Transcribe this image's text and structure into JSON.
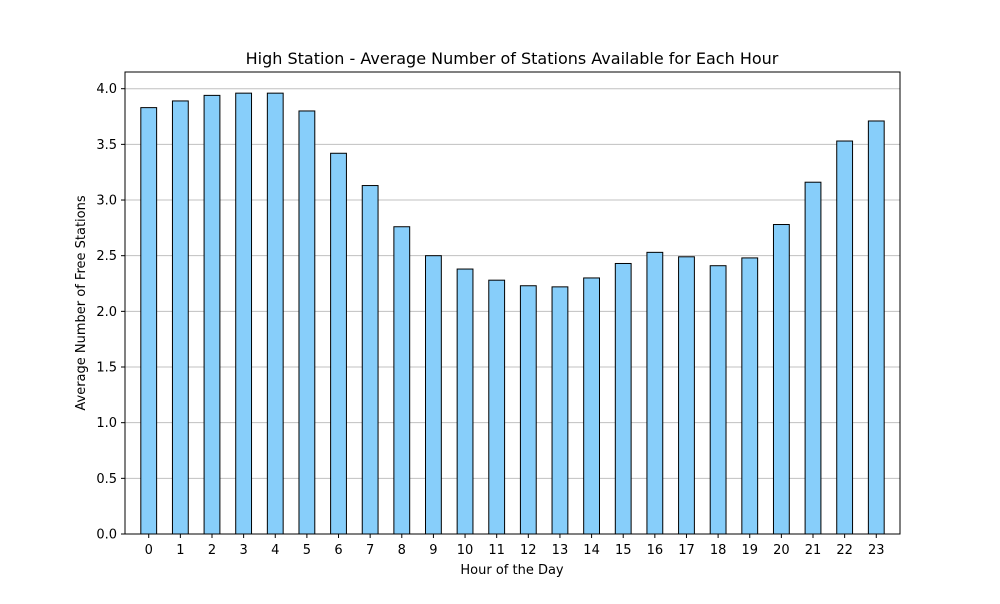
{
  "chart_data": {
    "type": "bar",
    "title": "High Station - Average Number of Stations Available for Each Hour",
    "xlabel": "Hour of the Day",
    "ylabel": "Average Number of Free Stations",
    "categories": [
      "0",
      "1",
      "2",
      "3",
      "4",
      "5",
      "6",
      "7",
      "8",
      "9",
      "10",
      "11",
      "12",
      "13",
      "14",
      "15",
      "16",
      "17",
      "18",
      "19",
      "20",
      "21",
      "22",
      "23"
    ],
    "values": [
      3.83,
      3.89,
      3.94,
      3.96,
      3.96,
      3.8,
      3.42,
      3.13,
      2.76,
      2.5,
      2.38,
      2.28,
      2.23,
      2.22,
      2.3,
      2.43,
      2.53,
      2.49,
      2.41,
      2.48,
      2.78,
      3.16,
      3.53,
      3.71
    ],
    "ylim": [
      0,
      4.15
    ],
    "yticks": [
      "0.0",
      "0.5",
      "1.0",
      "1.5",
      "2.0",
      "2.5",
      "3.0",
      "3.5",
      "4.0"
    ],
    "grid": "horizontal",
    "legend": "none",
    "colors": {
      "bar_fill": "#87cefa",
      "bar_edge": "#000000",
      "grid": "#c0c0c0"
    }
  }
}
